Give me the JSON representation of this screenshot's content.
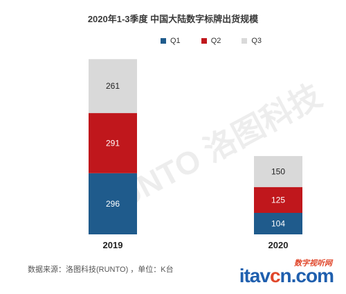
{
  "chart_data": {
    "type": "bar",
    "stacked": true,
    "title": "2020年1-3季度 中国大陆数字标牌出货规模",
    "categories": [
      "2019",
      "2020"
    ],
    "series": [
      {
        "name": "Q1",
        "color": "#1f5b8c",
        "values": [
          296,
          104
        ]
      },
      {
        "name": "Q2",
        "color": "#c0171c",
        "values": [
          291,
          125
        ]
      },
      {
        "name": "Q3",
        "color": "#d9d9d9",
        "values": [
          261,
          150
        ]
      }
    ],
    "legend_position": "top-right",
    "grid": false,
    "yaxis_visible": false
  },
  "source_text": "数据来源：洛图科技(RUNTO)  ，单位：K台",
  "watermark": {
    "diagonal_text": "RUNTO 洛图科技",
    "brand_sub": "数字视听网",
    "brand_main_prefix": "itav",
    "brand_main_accent": "c",
    "brand_main_suffix": "n.com"
  }
}
